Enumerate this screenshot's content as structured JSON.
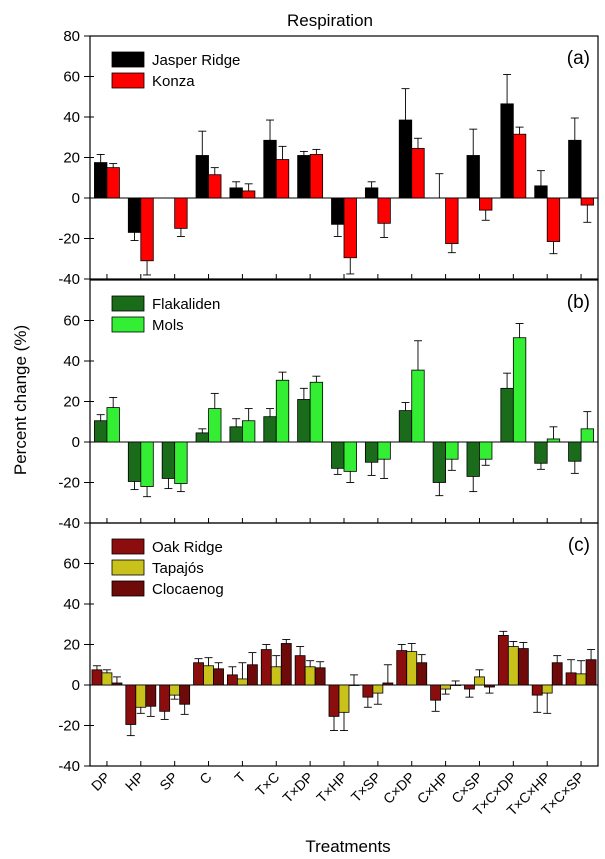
{
  "figure": {
    "title": "Respiration",
    "ylabel": "Percent change (%)",
    "xlabel": "Treatments"
  },
  "chart_data": [
    {
      "type": "bar",
      "panel_label": "(a)",
      "ylim": [
        -40,
        80
      ],
      "yticks": [
        -40,
        -20,
        0,
        20,
        40,
        60,
        80
      ],
      "legend_position": "top-left",
      "categories": [
        "DP",
        "HP",
        "SP",
        "C",
        "T",
        "T×C",
        "T×DP",
        "T×HP",
        "T×SP",
        "C×DP",
        "C×HP",
        "C×SP",
        "T×C×DP",
        "T×C×HP",
        "T×C×SP"
      ],
      "series": [
        {
          "name": "Jasper Ridge",
          "color": "#000000",
          "values": [
            17.5,
            -17,
            null,
            21,
            5,
            28.5,
            21,
            -13,
            5,
            38.5,
            null,
            21,
            46.5,
            6,
            28.5
          ],
          "errors": [
            4,
            4,
            null,
            12,
            3,
            10,
            2,
            6,
            3,
            15.5,
            12,
            13,
            14.5,
            7.5,
            11
          ]
        },
        {
          "name": "Konza",
          "color": "#ff0000",
          "values": [
            15,
            -31,
            -15,
            11.5,
            3.5,
            19,
            21.5,
            -29.5,
            -12.5,
            24.5,
            -22.5,
            -6,
            31.5,
            -21.5,
            -3.5
          ],
          "errors": [
            2,
            7,
            4,
            3.5,
            3.5,
            6.5,
            2.5,
            8,
            7,
            5,
            4.5,
            5,
            3.5,
            6,
            8.5
          ]
        }
      ]
    },
    {
      "type": "bar",
      "panel_label": "(b)",
      "ylim": [
        -40,
        80
      ],
      "yticks": [
        -40,
        -20,
        0,
        20,
        40,
        60
      ],
      "legend_position": "top-left",
      "categories": [
        "DP",
        "HP",
        "SP",
        "C",
        "T",
        "T×C",
        "T×DP",
        "T×HP",
        "T×SP",
        "C×DP",
        "C×HP",
        "C×SP",
        "T×C×DP",
        "T×C×HP",
        "T×C×SP"
      ],
      "series": [
        {
          "name": "Flakaliden",
          "color": "#1a6b1a",
          "values": [
            10.5,
            -19.5,
            -18,
            4.5,
            7.5,
            12.5,
            21,
            -13,
            -10,
            15.5,
            -20,
            -17,
            26.5,
            -10.5,
            -9.5
          ],
          "errors": [
            3,
            4,
            5,
            2,
            4,
            4,
            5.5,
            3,
            6.5,
            4,
            6.5,
            7.5,
            7.5,
            3,
            6
          ]
        },
        {
          "name": "Mols",
          "color": "#33ee33",
          "values": [
            17,
            -22,
            -20.5,
            16.5,
            10.5,
            30.5,
            29.5,
            -14.5,
            -8.5,
            35.5,
            -8.5,
            -8.5,
            51.5,
            1.5,
            6.5
          ],
          "errors": [
            5,
            5,
            4,
            7.5,
            6,
            4,
            3,
            5.5,
            9.5,
            14.5,
            5.5,
            3,
            7,
            6,
            8.5
          ]
        }
      ]
    },
    {
      "type": "bar",
      "panel_label": "(c)",
      "ylim": [
        -40,
        80
      ],
      "yticks": [
        -40,
        -20,
        0,
        20,
        40,
        60
      ],
      "legend_position": "top-left",
      "categories": [
        "DP",
        "HP",
        "SP",
        "C",
        "T",
        "T×C",
        "T×DP",
        "T×HP",
        "T×SP",
        "C×DP",
        "C×HP",
        "C×SP",
        "T×C×DP",
        "T×C×HP",
        "T×C×SP"
      ],
      "series": [
        {
          "name": "Oak Ridge",
          "color": "#8b0d0d",
          "values": [
            7.5,
            -19.5,
            -13,
            11,
            5,
            17.5,
            14.5,
            -15.5,
            -6,
            17,
            -7.5,
            -2,
            24.5,
            -5,
            6
          ],
          "errors": [
            2,
            5.5,
            4,
            2,
            4,
            2.5,
            4.5,
            7,
            5,
            3,
            5.5,
            4,
            2,
            8.5,
            6.5
          ]
        },
        {
          "name": "Tapajós",
          "color": "#c9c21a",
          "values": [
            6,
            -11,
            -5,
            9.5,
            3,
            9,
            9,
            -13.5,
            -4,
            16.5,
            -2,
            4,
            19,
            -4,
            5.5
          ],
          "errors": [
            1.5,
            3,
            2,
            4,
            8,
            5.5,
            3,
            9,
            5.5,
            4,
            2.5,
            3.5,
            2.5,
            10,
            6.5
          ]
        },
        {
          "name": "Clocaenog",
          "color": "#6e0a0a",
          "values": [
            1,
            -10.5,
            -9.5,
            8,
            10,
            20.5,
            8.5,
            0,
            1,
            11,
            0,
            -1,
            18,
            11,
            12.5
          ],
          "errors": [
            3,
            5,
            5,
            3,
            6,
            2,
            3,
            5,
            9,
            4,
            2,
            3,
            3,
            3.5,
            5
          ]
        }
      ]
    }
  ]
}
